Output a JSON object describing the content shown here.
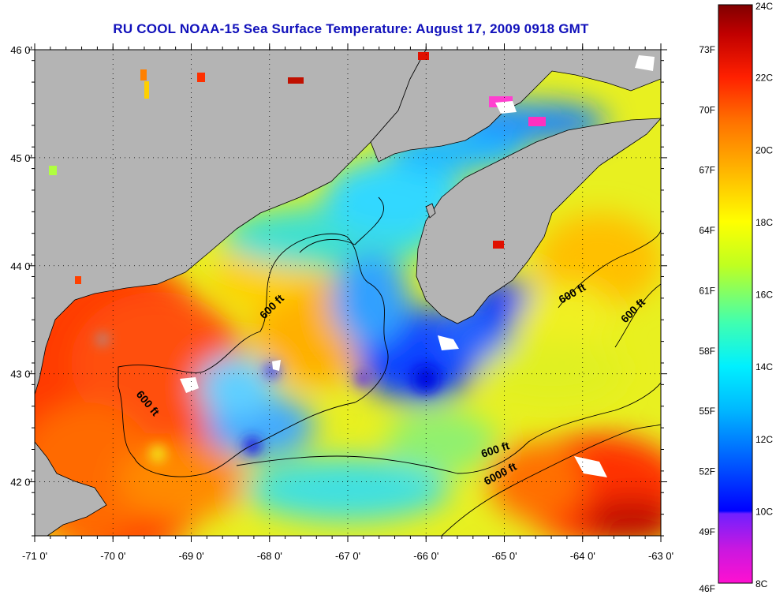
{
  "title": "RU COOL  NOAA-15  Sea Surface Temperature:  August 17, 2009 0918 GMT",
  "map": {
    "lon_range": [
      -71,
      -63
    ],
    "lat_range": [
      41.5,
      46
    ],
    "lon_ticks": [
      {
        "value": -71,
        "label": "-71 0'"
      },
      {
        "value": -70,
        "label": "-70 0'"
      },
      {
        "value": -69,
        "label": "-69 0'"
      },
      {
        "value": -68,
        "label": "-68 0'"
      },
      {
        "value": -67,
        "label": "-67 0'"
      },
      {
        "value": -66,
        "label": "-66 0'"
      },
      {
        "value": -65,
        "label": "-65 0'"
      },
      {
        "value": -64,
        "label": "-64 0'"
      },
      {
        "value": -63,
        "label": "-63 0'"
      }
    ],
    "lat_ticks": [
      {
        "value": 46,
        "label": "46 0'"
      },
      {
        "value": 45,
        "label": "45 0'"
      },
      {
        "value": 44,
        "label": "44 0'"
      },
      {
        "value": 43,
        "label": "43 0'"
      },
      {
        "value": 42,
        "label": "42 0'"
      }
    ],
    "isobath_labels": [
      "600 ft",
      "600 ft",
      "600 ft",
      "600 ft",
      "6000 ft"
    ],
    "land_color": "#b4b4b4",
    "grid": "dotted"
  },
  "colorbar": {
    "celsius": [
      {
        "value": 24,
        "label": "24C"
      },
      {
        "value": 22,
        "label": "22C"
      },
      {
        "value": 20,
        "label": "20C"
      },
      {
        "value": 18,
        "label": "18C"
      },
      {
        "value": 16,
        "label": "16C"
      },
      {
        "value": 14,
        "label": "14C"
      },
      {
        "value": 12,
        "label": "12C"
      },
      {
        "value": 10,
        "label": "10C"
      },
      {
        "value": 8,
        "label": "8C"
      }
    ],
    "fahrenheit": [
      {
        "value": 73,
        "label": "73F"
      },
      {
        "value": 70,
        "label": "70F"
      },
      {
        "value": 67,
        "label": "67F"
      },
      {
        "value": 64,
        "label": "64F"
      },
      {
        "value": 61,
        "label": "61F"
      },
      {
        "value": 58,
        "label": "58F"
      },
      {
        "value": 55,
        "label": "55F"
      },
      {
        "value": 52,
        "label": "52F"
      },
      {
        "value": 49,
        "label": "49F"
      },
      {
        "value": 46,
        "label": "46F"
      }
    ],
    "range_c": [
      8,
      24
    ],
    "colors": [
      "#ff10d0",
      "#a020f0",
      "#0000ff",
      "#0070ff",
      "#00e0ff",
      "#40ffb0",
      "#d8ff10",
      "#ffd000",
      "#ff8000",
      "#ff2000",
      "#800000"
    ]
  }
}
